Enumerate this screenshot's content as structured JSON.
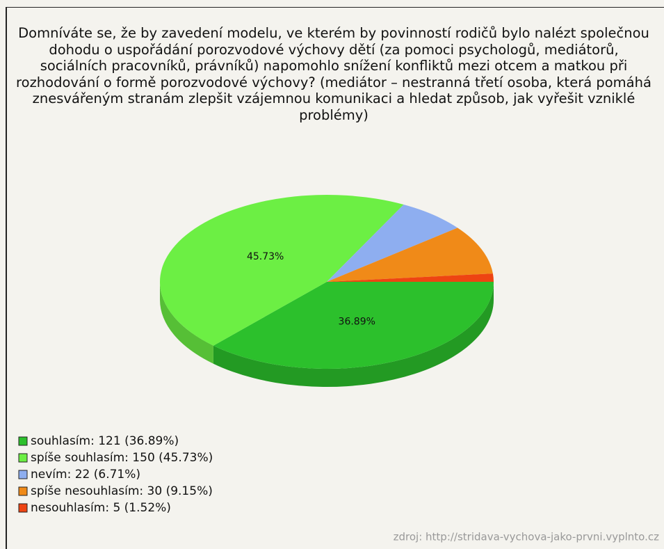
{
  "chart_data": {
    "type": "pie",
    "title": "Domníváte se, že by zavedení modelu, ve kterém by povinností rodičů bylo nalézt společnou dohodu o uspořádání porozvodové výchovy dětí (za pomoci psychologů, mediátorů, sociálních pracovníků, právníků) napomohlo snížení konfliktů mezi otcem a matkou při rozhodování o formě porozvodové výchovy? (mediátor – nestranná třetí osoba, která pomáhá znesvářeným stranám zlepšit vzájemnou komunikaci a hledat způsob, jak vyřešit vzniklé problémy)",
    "categories": [
      "souhlasím: 121 (36.89%)",
      "spíše souhlasím: 150 (45.73%)",
      "nevím: 22 (6.71%)",
      "spíše nesouhlasím: 30 (9.15%)",
      "nesouhlasím: 5 (1.52%)"
    ],
    "values": [
      36.89,
      45.73,
      6.71,
      9.15,
      1.52
    ],
    "value_labels": [
      "36.89%",
      "45.73%",
      null,
      null,
      null
    ],
    "colors": [
      "#2cc02c",
      "#6cef44",
      "#8eaef0",
      "#f08a18",
      "#ee4412"
    ],
    "source": "zdroj: http://stridava-vychova-jako-prvni.vyplnto.cz"
  }
}
